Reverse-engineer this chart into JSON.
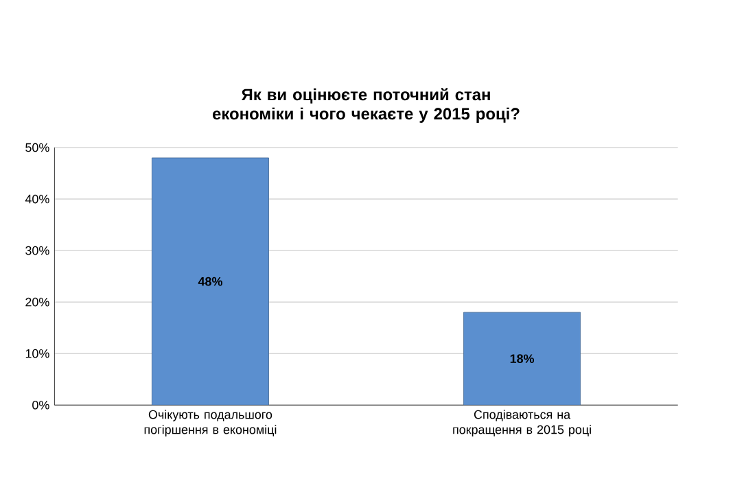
{
  "chart_data": {
    "type": "bar",
    "title": "Як ви оцінюєте поточний стан економіки і чого чекаєте у 2015 році?",
    "categories": [
      "Очікують подальшого погіршення в економіці",
      "Сподіваються на покращення в 2015 році"
    ],
    "values": [
      48,
      18
    ],
    "color": "#5b8fcf",
    "value_labels": [
      "48%",
      "18%"
    ],
    "ylim": [
      0,
      50
    ],
    "yticks": [
      {
        "value": 0,
        "label": "0%"
      },
      {
        "value": 10,
        "label": "10%"
      },
      {
        "value": 20,
        "label": "20%"
      },
      {
        "value": 30,
        "label": "30%"
      },
      {
        "value": 40,
        "label": "40%"
      },
      {
        "value": 50,
        "label": "50%"
      }
    ],
    "grid": "y"
  }
}
